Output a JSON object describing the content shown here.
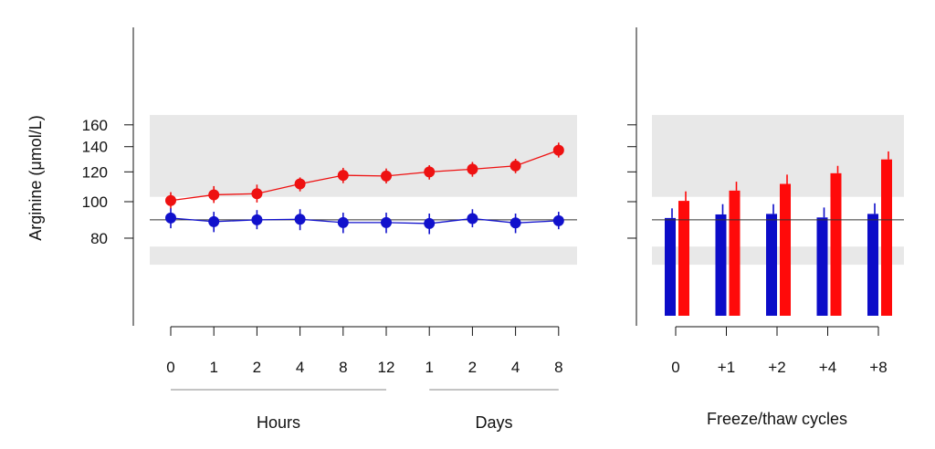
{
  "chart_data": [
    {
      "type": "line",
      "ylabel": "Arginine (μmol/L)",
      "yscale": "log",
      "yticks": [
        80,
        100,
        120,
        140,
        160
      ],
      "categories": [
        "0",
        "1",
        "2",
        "4",
        "8",
        "12",
        "1",
        "2",
        "4",
        "8"
      ],
      "groups": [
        {
          "label": "Hours",
          "start": 0,
          "end": 5
        },
        {
          "label": "Days",
          "start": 6,
          "end": 9
        }
      ],
      "reference_line": 89.5,
      "shaded_ranges": [
        [
          68,
          76
        ],
        [
          103,
          170
        ]
      ],
      "series": [
        {
          "color": "#ee1111",
          "values": [
            100.7,
            104.3,
            105.0,
            111.5,
            117.5,
            117.0,
            120.0,
            122.0,
            124.5,
            137.0
          ],
          "err_low": [
            95.8,
            99.2,
            99.5,
            106.5,
            112.0,
            111.8,
            114.5,
            116.5,
            119.0,
            131.0
          ],
          "err_high": [
            106.0,
            110.0,
            111.0,
            116.0,
            123.0,
            122.5,
            125.0,
            127.5,
            130.0,
            143.5
          ]
        },
        {
          "color": "#1111cc",
          "values": [
            90.5,
            88.5,
            89.5,
            89.8,
            88.0,
            88.0,
            87.5,
            90.2,
            87.8,
            89.0
          ],
          "err_low": [
            85.0,
            83.0,
            84.5,
            84.0,
            82.5,
            82.5,
            82.0,
            85.5,
            82.5,
            84.5
          ],
          "err_high": [
            96.0,
            94.0,
            95.0,
            95.5,
            93.5,
            93.5,
            93.0,
            95.5,
            93.0,
            94.0
          ]
        }
      ]
    },
    {
      "type": "bar",
      "xlabel": "Freeze/thaw cycles",
      "yscale": "log",
      "categories": [
        "0",
        "+1",
        "+2",
        "+4",
        "+8"
      ],
      "reference_line": 89.5,
      "shaded_ranges": [
        [
          68,
          76
        ],
        [
          103,
          170
        ]
      ],
      "series": [
        {
          "color": "#0c0cc8",
          "values": [
            90.5,
            92.5,
            92.8,
            90.8,
            92.8
          ],
          "err_high": [
            96.0,
            98.5,
            98.5,
            96.5,
            99.0
          ]
        },
        {
          "color": "#ff0a0a",
          "values": [
            100.5,
            107.0,
            111.5,
            119.0,
            129.5
          ],
          "err_high": [
            106.5,
            113.0,
            118.0,
            124.5,
            136.0
          ]
        }
      ]
    }
  ]
}
